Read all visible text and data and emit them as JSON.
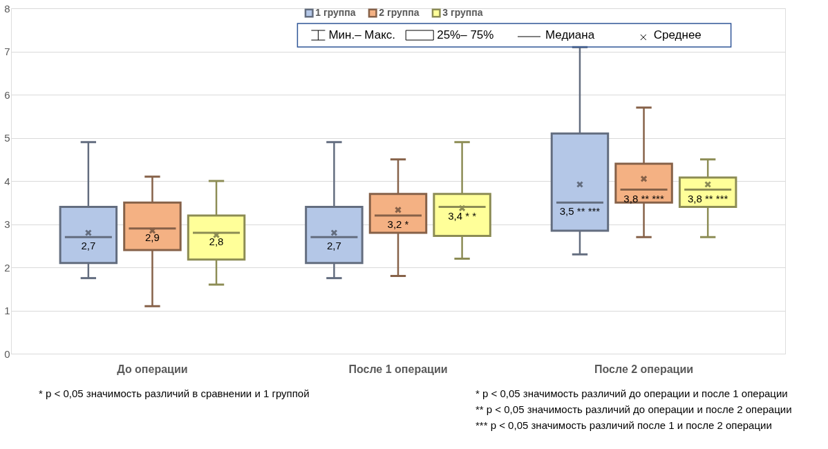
{
  "chart_data": {
    "type": "box",
    "categories": [
      "До операции",
      "После 1 операции",
      "После 2 операции"
    ],
    "series": [
      {
        "name": "1 группа",
        "color": "#b4c7e7",
        "value_labels": [
          "2,7",
          "2,7",
          "3,5 ** ***"
        ],
        "boxes": [
          {
            "low": 1.75,
            "q1": 2.1,
            "median": 2.7,
            "q3": 3.4,
            "high": 4.9,
            "mean": 2.8
          },
          {
            "low": 1.75,
            "q1": 2.1,
            "median": 2.7,
            "q3": 3.4,
            "high": 4.9,
            "mean": 2.8
          },
          {
            "low": 2.3,
            "q1": 2.85,
            "median": 3.5,
            "q3": 5.1,
            "high": 7.1,
            "mean": 3.92
          }
        ]
      },
      {
        "name": "2 группа",
        "color": "#f4b183",
        "value_labels": [
          "2,9",
          "3,2 *",
          "3,8 ** ***"
        ],
        "boxes": [
          {
            "low": 1.1,
            "q1": 2.4,
            "median": 2.9,
            "q3": 3.5,
            "high": 4.1,
            "mean": 2.85
          },
          {
            "low": 1.8,
            "q1": 2.8,
            "median": 3.2,
            "q3": 3.7,
            "high": 4.5,
            "mean": 3.33
          },
          {
            "low": 2.7,
            "q1": 3.5,
            "median": 3.8,
            "q3": 4.4,
            "high": 5.7,
            "mean": 4.05
          }
        ]
      },
      {
        "name": "3 группа",
        "color": "#ffff99",
        "value_labels": [
          "2,8",
          "3,4 * *",
          "3,8 ** ***"
        ],
        "boxes": [
          {
            "low": 1.6,
            "q1": 2.18,
            "median": 2.8,
            "q3": 3.2,
            "high": 4.0,
            "mean": 2.75
          },
          {
            "low": 2.2,
            "q1": 2.73,
            "median": 3.4,
            "q3": 3.7,
            "high": 4.9,
            "mean": 3.37
          },
          {
            "low": 2.7,
            "q1": 3.4,
            "median": 3.8,
            "q3": 4.08,
            "high": 4.5,
            "mean": 3.92
          }
        ]
      }
    ],
    "ylim": [
      0,
      8
    ],
    "yticks": [
      0,
      1,
      2,
      3,
      4,
      5,
      6,
      7,
      8
    ],
    "grid": "y",
    "legend": "top",
    "marker": "cross",
    "annotations": [
      "Мин.– Макс.",
      "25%– 75%",
      "Медиана",
      "Среднее",
      "* p < 0,05  значимость различий в сравнении и 1 группой",
      "* p < 0,05  значимость различий до операции и после 1 операции",
      "** p < 0,05  значимость различий до операции и после 2 операции",
      "*** p < 0,05  значимость различий после 1 и после 2 операции"
    ]
  }
}
